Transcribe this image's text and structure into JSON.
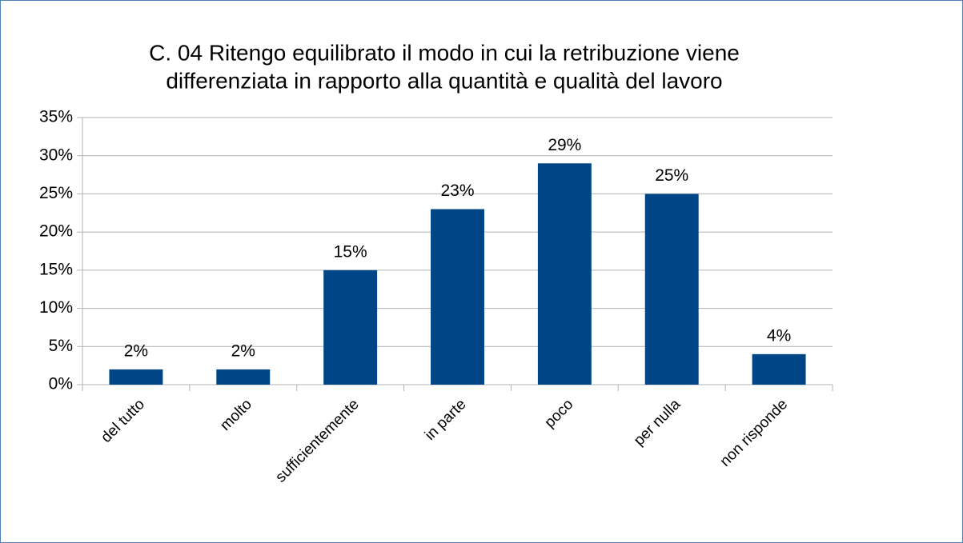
{
  "chart_data": {
    "type": "bar",
    "title": [
      "C. 04 Ritengo equilibrato il modo in cui la retribuzione viene",
      "differenziata in rapporto alla quantità e qualità del lavoro"
    ],
    "categories": [
      "del tutto",
      "molto",
      "sufficientemente",
      "in parte",
      "poco",
      "per nulla",
      "non risponde"
    ],
    "values": [
      2,
      2,
      15,
      23,
      29,
      25,
      4
    ],
    "value_labels": [
      "2%",
      "2%",
      "15%",
      "23%",
      "29%",
      "25%",
      "4%"
    ],
    "color": "#004586",
    "ylim": [
      0,
      35
    ],
    "yticks": [
      {
        "value": 0,
        "label": "0%"
      },
      {
        "value": 5,
        "label": "5%"
      },
      {
        "value": 10,
        "label": "10%"
      },
      {
        "value": 15,
        "label": "15%"
      },
      {
        "value": 20,
        "label": "20%"
      },
      {
        "value": 25,
        "label": "25%"
      },
      {
        "value": 30,
        "label": "30%"
      },
      {
        "value": 35,
        "label": "35%"
      }
    ],
    "grid": true
  }
}
